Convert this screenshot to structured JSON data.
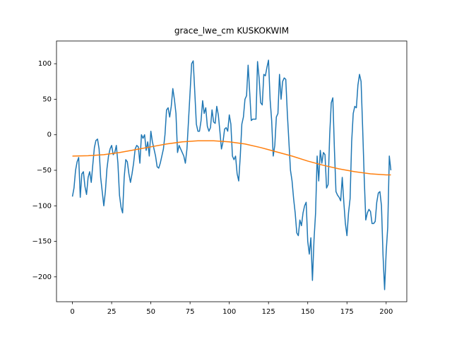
{
  "chart_data": {
    "type": "line",
    "title": "grace_lwe_cm KUSKOKWIM",
    "x": [
      0,
      1,
      2,
      3,
      4,
      5,
      6,
      7,
      8,
      9,
      10,
      11,
      12,
      13,
      14,
      15,
      16,
      17,
      18,
      19,
      20,
      21,
      22,
      23,
      24,
      25,
      26,
      27,
      28,
      29,
      30,
      31,
      32,
      33,
      34,
      35,
      36,
      37,
      38,
      39,
      40,
      41,
      42,
      43,
      44,
      45,
      46,
      47,
      48,
      49,
      50,
      51,
      52,
      53,
      54,
      55,
      56,
      57,
      58,
      59,
      60,
      61,
      62,
      63,
      64,
      65,
      66,
      67,
      68,
      69,
      70,
      71,
      72,
      73,
      74,
      75,
      76,
      77,
      78,
      79,
      80,
      81,
      82,
      83,
      84,
      85,
      86,
      87,
      88,
      89,
      90,
      91,
      92,
      93,
      94,
      95,
      96,
      97,
      98,
      99,
      100,
      101,
      102,
      103,
      104,
      105,
      106,
      107,
      108,
      109,
      110,
      111,
      112,
      113,
      114,
      115,
      116,
      117,
      118,
      119,
      120,
      121,
      122,
      123,
      124,
      125,
      126,
      127,
      128,
      129,
      130,
      131,
      132,
      133,
      134,
      135,
      136,
      137,
      138,
      139,
      140,
      141,
      142,
      143,
      144,
      145,
      146,
      147,
      148,
      149,
      150,
      151,
      152,
      153,
      154,
      155,
      156,
      157,
      158,
      159,
      160,
      161,
      162,
      163,
      164,
      165,
      166,
      167,
      168,
      169,
      170,
      171,
      172,
      173,
      174,
      175,
      176,
      177,
      178,
      179,
      180,
      181,
      182,
      183,
      184,
      185,
      186,
      187,
      188,
      189,
      190,
      191,
      192,
      193,
      194,
      195,
      196,
      197,
      198,
      199,
      200,
      201,
      202,
      203
    ],
    "series": [
      {
        "color": "#1f77b4",
        "values": [
          -87,
          -75,
          -50,
          -38,
          -32,
          -88,
          -55,
          -52,
          -73,
          -84,
          -60,
          -52,
          -67,
          -42,
          -18,
          -8,
          -6,
          -20,
          -60,
          -80,
          -100,
          -80,
          -48,
          -30,
          -20,
          -15,
          -28,
          -25,
          -15,
          -40,
          -85,
          -102,
          -110,
          -60,
          -35,
          -38,
          -55,
          -67,
          -55,
          -40,
          -20,
          -15,
          -17,
          -40,
          0,
          -5,
          0,
          -22,
          -10,
          -30,
          5,
          -10,
          -20,
          -30,
          -45,
          -47,
          -40,
          -30,
          -20,
          0,
          35,
          38,
          25,
          40,
          65,
          50,
          30,
          -25,
          -15,
          -20,
          -25,
          -30,
          -40,
          -20,
          20,
          60,
          100,
          104,
          60,
          15,
          5,
          5,
          20,
          48,
          30,
          38,
          12,
          5,
          10,
          35,
          18,
          16,
          40,
          28,
          5,
          -20,
          -10,
          8,
          10,
          5,
          28,
          15,
          -30,
          -35,
          -30,
          -55,
          -65,
          -30,
          15,
          25,
          50,
          55,
          98,
          60,
          20,
          22,
          22,
          22,
          103,
          80,
          45,
          42,
          85,
          83,
          95,
          105,
          50,
          20,
          -30,
          -15,
          25,
          30,
          85,
          50,
          75,
          80,
          78,
          30,
          -10,
          -50,
          -65,
          -90,
          -110,
          -138,
          -142,
          -120,
          -128,
          -110,
          -100,
          -95,
          -150,
          -168,
          -145,
          -205,
          -148,
          -110,
          -30,
          -65,
          -22,
          -40,
          -25,
          -28,
          -75,
          -70,
          0,
          45,
          52,
          -20,
          -80,
          -85,
          -88,
          -93,
          -60,
          -95,
          -125,
          -142,
          -110,
          -90,
          -10,
          30,
          40,
          38,
          70,
          85,
          75,
          10,
          -60,
          -120,
          -110,
          -105,
          -108,
          -125,
          -125,
          -122,
          -95,
          -82,
          -80,
          -100,
          -170,
          -218,
          -165,
          -130,
          -30,
          -50
        ]
      },
      {
        "color": "#ff7f0e",
        "x": [
          0,
          10,
          20,
          30,
          40,
          50,
          60,
          70,
          80,
          90,
          100,
          110,
          120,
          130,
          140,
          150,
          160,
          170,
          180,
          190,
          200,
          203
        ],
        "values": [
          -30,
          -29.5,
          -28,
          -25,
          -21,
          -17,
          -13,
          -10,
          -8.5,
          -8.5,
          -10,
          -13,
          -18,
          -24,
          -30,
          -37,
          -43,
          -48,
          -52,
          -55,
          -56.5,
          -56.5
        ]
      }
    ],
    "xlim": [
      -10.15,
      213.15
    ],
    "ylim": [
      -235,
      132
    ],
    "xticks": [
      0,
      25,
      50,
      75,
      100,
      125,
      150,
      175,
      200
    ],
    "yticks": [
      {
        "value": -200,
        "label": "−200"
      },
      {
        "value": -150,
        "label": "−150"
      },
      {
        "value": -100,
        "label": "−100"
      },
      {
        "value": -50,
        "label": "−50"
      },
      0,
      50,
      100
    ]
  }
}
